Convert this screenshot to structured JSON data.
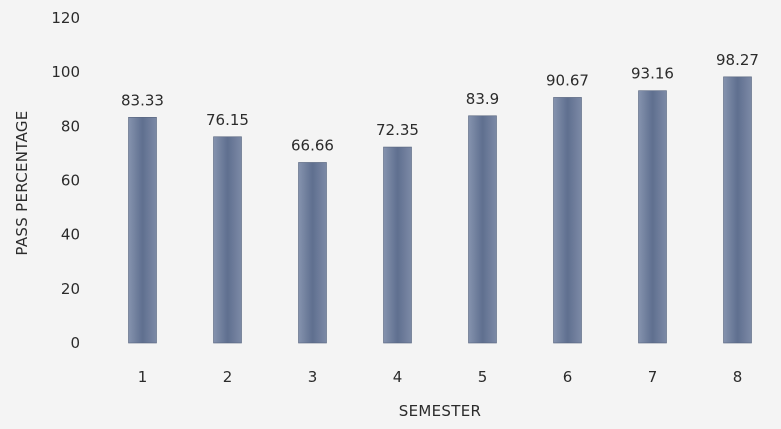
{
  "chart_data": {
    "type": "bar",
    "categories": [
      "1",
      "2",
      "3",
      "4",
      "5",
      "6",
      "7",
      "8"
    ],
    "values": [
      83.33,
      76.15,
      66.66,
      72.35,
      83.9,
      90.67,
      93.16,
      98.27
    ],
    "data_labels": [
      "83.33",
      "76.15",
      "66.66",
      "72.35",
      "83.9",
      "90.67",
      "93.16",
      "98.27"
    ],
    "title": "",
    "xlabel": "SEMESTER",
    "ylabel": "PASS PERCENTAGE",
    "ylim": [
      0,
      120
    ],
    "yticks": [
      0,
      20,
      40,
      60,
      80,
      100,
      120
    ],
    "grid": false,
    "legend": "none",
    "bar_color": "#6f7f9c"
  }
}
